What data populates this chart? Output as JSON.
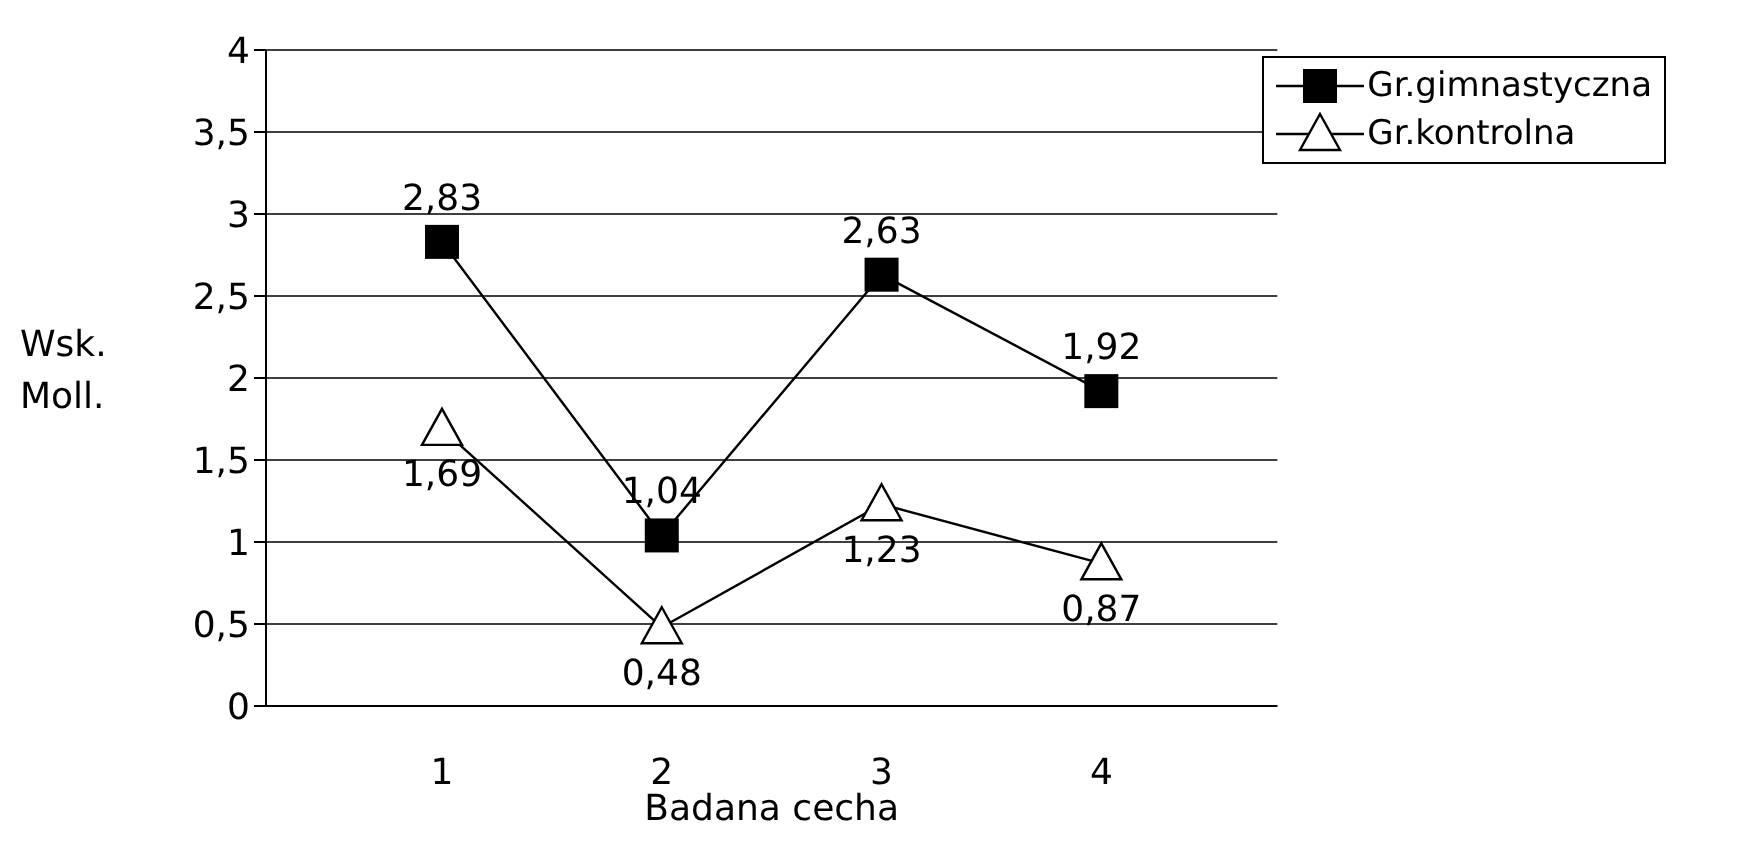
{
  "chart_data": {
    "type": "line",
    "xlabel": "Badana cecha",
    "ylabel": "Wsk. Moll.",
    "categories": [
      "1",
      "2",
      "3",
      "4"
    ],
    "series": [
      {
        "name": "Gr.gimnastyczna",
        "color": "#000000",
        "marker": "square",
        "values": [
          2.83,
          1.04,
          2.63,
          1.92
        ],
        "value_labels": [
          "2,83",
          "1,04",
          "2,63",
          "1,92"
        ]
      },
      {
        "name": "Gr.kontrolna",
        "color": "#000000",
        "marker": "triangle",
        "values": [
          1.69,
          0.48,
          1.23,
          0.87
        ],
        "value_labels": [
          "1,69",
          "0,48",
          "1,23",
          "0,87"
        ]
      }
    ],
    "ylim": [
      0,
      4
    ],
    "yticks": [
      0,
      {
        "value": 0.5,
        "label": "0,5"
      },
      1,
      {
        "value": 1.5,
        "label": "1,5"
      },
      2,
      {
        "value": 2.5,
        "label": "2,5"
      },
      3,
      {
        "value": 3.5,
        "label": "3,5"
      },
      4
    ],
    "grid": "y",
    "legend": "top right",
    "line_style": "solid"
  }
}
